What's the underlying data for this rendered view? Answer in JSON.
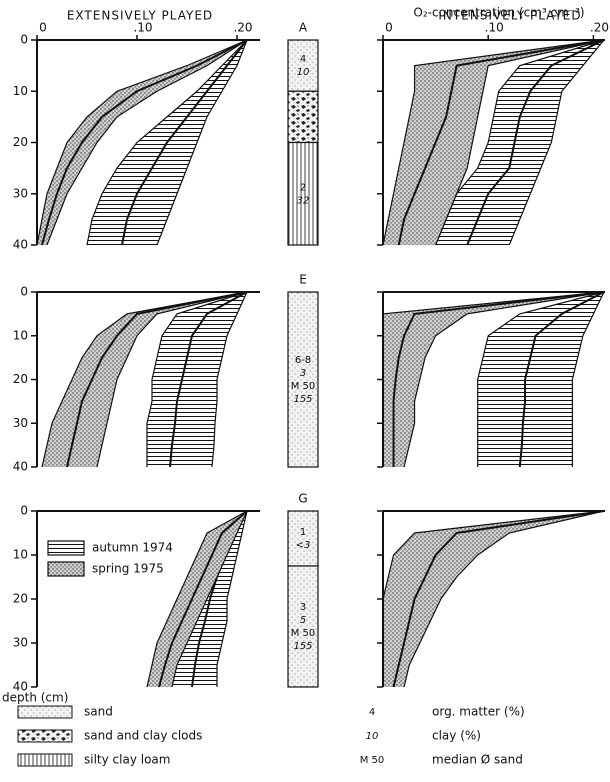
{
  "headings": [
    "EXTENSIVELY PLAYED",
    "INTENSIVELY PLAYED"
  ],
  "chart_data": [
    {
      "type": "band",
      "ylim": [
        0,
        40
      ],
      "y_direction": "down",
      "yticks": [
        0,
        10,
        20,
        30,
        40
      ],
      "ytick_labels": true,
      "xlim": [
        0,
        0.223
      ],
      "xticks": [
        0,
        {
          "value": 0.1,
          "label": ".10"
        },
        {
          "value": 0.2,
          "label": ".20"
        }
      ],
      "xtick_labels": true,
      "depth": [
        0,
        5,
        10,
        15,
        20,
        25,
        30,
        35,
        40
      ],
      "series": [
        {
          "pattern": "hatch",
          "lower": [
            0.21,
            0.185,
            0.16,
            0.13,
            0.1,
            0.08,
            0.065,
            0.055,
            0.05
          ],
          "mean": [
            0.21,
            0.19,
            0.17,
            0.15,
            0.13,
            0.115,
            0.1,
            0.09,
            0.085
          ],
          "upper": [
            0.21,
            0.2,
            0.185,
            0.17,
            0.16,
            0.15,
            0.14,
            0.13,
            0.12
          ]
        },
        {
          "pattern": "stipple",
          "lower": [
            0.21,
            0.15,
            0.08,
            0.05,
            0.03,
            0.02,
            0.01,
            0.005,
            0
          ],
          "mean": [
            0.21,
            0.16,
            0.1,
            0.065,
            0.045,
            0.03,
            0.02,
            0.012,
            0.005
          ],
          "upper": [
            0.21,
            0.17,
            0.12,
            0.08,
            0.06,
            0.045,
            0.03,
            0.02,
            0.01
          ]
        }
      ]
    },
    {
      "type": "band",
      "ylim": [
        0,
        40
      ],
      "y_direction": "down",
      "yticks": [
        0,
        10,
        20,
        30,
        40
      ],
      "ytick_labels": false,
      "xlim": [
        0,
        0.211
      ],
      "xticks": [
        0,
        {
          "value": 0.1,
          "label": ".10"
        },
        {
          "value": 0.2,
          "label": ".20"
        }
      ],
      "xtick_labels": true,
      "xlabel": "O₂-concentration (cm³.cm⁻³)",
      "depth": [
        0,
        5,
        10,
        15,
        20,
        25,
        30,
        35,
        40
      ],
      "series": [
        {
          "pattern": "hatch",
          "lower": [
            0.21,
            0.13,
            0.11,
            0.105,
            0.1,
            0.09,
            0.07,
            0.06,
            0.05
          ],
          "mean": [
            0.21,
            0.16,
            0.14,
            0.13,
            0.125,
            0.12,
            0.1,
            0.09,
            0.08
          ],
          "upper": [
            0.21,
            0.19,
            0.17,
            0.165,
            0.16,
            0.15,
            0.14,
            0.13,
            0.12
          ]
        },
        {
          "pattern": "stipple",
          "lower": [
            0.21,
            0.03,
            0.03,
            0.025,
            0.02,
            0.015,
            0.01,
            0.005,
            0
          ],
          "mean": [
            0.21,
            0.07,
            0.065,
            0.06,
            0.05,
            0.04,
            0.03,
            0.02,
            0.015
          ],
          "upper": [
            0.21,
            0.1,
            0.095,
            0.09,
            0.085,
            0.08,
            0.07,
            0.06,
            0.05
          ]
        }
      ]
    },
    {
      "type": "band",
      "ylim": [
        0,
        40
      ],
      "y_direction": "down",
      "yticks": [
        0,
        10,
        20,
        30,
        40
      ],
      "ytick_labels": true,
      "xlim": [
        0,
        0.223
      ],
      "depth": [
        0,
        5,
        10,
        15,
        20,
        25,
        30,
        35,
        40
      ],
      "series": [
        {
          "pattern": "hatch",
          "lower": [
            0.21,
            0.14,
            0.125,
            0.12,
            0.115,
            0.115,
            0.11,
            0.11,
            0.11
          ],
          "mean": [
            0.21,
            0.17,
            0.155,
            0.15,
            0.145,
            0.14,
            0.138,
            0.135,
            0.133
          ],
          "upper": [
            0.21,
            0.2,
            0.19,
            0.185,
            0.18,
            0.18,
            0.178,
            0.177,
            0.175
          ]
        },
        {
          "pattern": "stipple",
          "lower": [
            0.21,
            0.09,
            0.06,
            0.045,
            0.035,
            0.025,
            0.015,
            0.01,
            0.005
          ],
          "mean": [
            0.21,
            0.1,
            0.08,
            0.065,
            0.055,
            0.045,
            0.04,
            0.035,
            0.03
          ],
          "upper": [
            0.21,
            0.12,
            0.1,
            0.09,
            0.08,
            0.075,
            0.07,
            0.065,
            0.06
          ]
        }
      ]
    },
    {
      "type": "band",
      "ylim": [
        0,
        40
      ],
      "y_direction": "down",
      "yticks": [
        0,
        10,
        20,
        30,
        40
      ],
      "ytick_labels": false,
      "xlim": [
        0,
        0.211
      ],
      "depth": [
        0,
        5,
        10,
        15,
        20,
        25,
        30,
        35,
        40
      ],
      "series": [
        {
          "pattern": "hatch",
          "lower": [
            0.21,
            0.13,
            0.1,
            0.095,
            0.09,
            0.09,
            0.09,
            0.09,
            0.09
          ],
          "mean": [
            0.21,
            0.17,
            0.145,
            0.14,
            0.135,
            0.135,
            0.133,
            0.132,
            0.13
          ],
          "upper": [
            0.21,
            0.2,
            0.19,
            0.185,
            0.18,
            0.18,
            0.18,
            0.18,
            0.18
          ]
        },
        {
          "pattern": "stipple",
          "lower": [
            0.21,
            0,
            0,
            0,
            0,
            0,
            0,
            0,
            0
          ],
          "mean": [
            0.21,
            0.03,
            0.02,
            0.015,
            0.012,
            0.01,
            0.01,
            0.01,
            0.01
          ],
          "upper": [
            0.21,
            0.08,
            0.05,
            0.04,
            0.035,
            0.03,
            0.03,
            0.025,
            0.02
          ]
        }
      ]
    },
    {
      "type": "band",
      "ylim": [
        0,
        40
      ],
      "y_direction": "down",
      "yticks": [
        0,
        10,
        20,
        30,
        40
      ],
      "ytick_labels": true,
      "ylabel": "depth (cm)",
      "legend": "upper left",
      "xlim": [
        0,
        0.223
      ],
      "depth": [
        0,
        5,
        10,
        15,
        20,
        25,
        30,
        35,
        40
      ],
      "series": [
        {
          "name": "autumn 1974",
          "pattern": "hatch",
          "lower": [
            0.21,
            0.185,
            0.175,
            0.165,
            0.155,
            0.15,
            0.14,
            0.135,
            0.13
          ],
          "mean": [
            0.21,
            0.195,
            0.188,
            0.18,
            0.173,
            0.168,
            0.162,
            0.158,
            0.155
          ],
          "upper": [
            0.21,
            0.205,
            0.2,
            0.195,
            0.19,
            0.19,
            0.185,
            0.18,
            0.18
          ]
        },
        {
          "name": "spring 1975",
          "pattern": "stipple",
          "lower": [
            0.21,
            0.17,
            0.16,
            0.15,
            0.14,
            0.13,
            0.12,
            0.115,
            0.11
          ],
          "mean": [
            0.21,
            0.185,
            0.175,
            0.165,
            0.155,
            0.145,
            0.135,
            0.128,
            0.122
          ],
          "upper": [
            0.21,
            0.2,
            0.19,
            0.18,
            0.17,
            0.16,
            0.15,
            0.14,
            0.135
          ]
        }
      ]
    },
    {
      "type": "band",
      "ylim": [
        0,
        40
      ],
      "y_direction": "down",
      "yticks": [
        0,
        10,
        20,
        30,
        40
      ],
      "ytick_labels": false,
      "xlim": [
        0,
        0.211
      ],
      "depth": [
        0,
        5,
        10,
        15,
        20,
        25,
        30,
        35,
        40
      ],
      "series": [
        {
          "pattern": "stipple",
          "lower": [
            0.21,
            0.03,
            0.01,
            0.005,
            0,
            0,
            0,
            0,
            0
          ],
          "mean": [
            0.21,
            0.07,
            0.05,
            0.04,
            0.03,
            0.025,
            0.02,
            0.015,
            0.01
          ],
          "upper": [
            0.21,
            0.12,
            0.09,
            0.07,
            0.055,
            0.045,
            0.035,
            0.025,
            0.02
          ]
        }
      ]
    }
  ],
  "profiles": [
    {
      "site": "A",
      "layers": [
        {
          "top": 0,
          "bottom": 10,
          "pattern": "sand",
          "labels": [
            "4",
            "10"
          ]
        },
        {
          "top": 10,
          "bottom": 20,
          "pattern": "clods",
          "labels": []
        },
        {
          "top": 20,
          "bottom": 40,
          "pattern": "silty",
          "labels": [
            "2",
            "32"
          ]
        }
      ]
    },
    {
      "site": "E",
      "layers": [
        {
          "top": 0,
          "bottom": 40,
          "pattern": "sand",
          "labels": [
            "6-8",
            "3",
            "M 50",
            "155"
          ]
        }
      ]
    },
    {
      "site": "G",
      "layers": [
        {
          "top": 0,
          "bottom": 12.5,
          "pattern": "sand",
          "labels": [
            "1",
            "<3"
          ]
        },
        {
          "top": 12.5,
          "bottom": 40,
          "pattern": "sand",
          "labels": [
            "3",
            "5",
            "M 50",
            "155"
          ]
        }
      ]
    }
  ],
  "soil_legend": [
    {
      "pattern": "sand",
      "label": "sand"
    },
    {
      "pattern": "clods",
      "label": "sand and clay clods"
    },
    {
      "pattern": "silty",
      "label": "silty clay loam"
    }
  ],
  "symbol_legend": [
    {
      "symbol": "4",
      "label": "org. matter (%)"
    },
    {
      "symbol": "10",
      "label": "clay (%)"
    },
    {
      "symbol": "M 50",
      "label": "median Ø sand"
    }
  ]
}
